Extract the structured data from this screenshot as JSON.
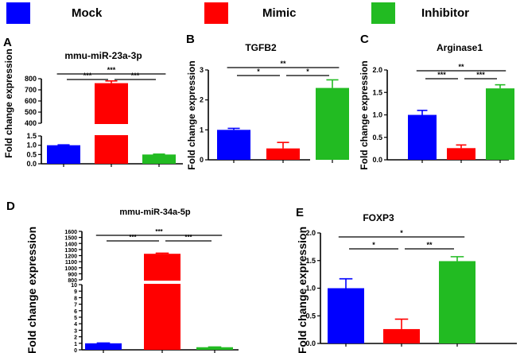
{
  "legend": [
    {
      "label": "Mock",
      "color": "#0000ff"
    },
    {
      "label": "Mimic",
      "color": "#ff0000"
    },
    {
      "label": "Inhibitor",
      "color": "#22bb22"
    }
  ],
  "chart_data": [
    {
      "type": "bar",
      "panel": "A",
      "title": "mmu-miR-23a-3p",
      "ylabel": "Fold change expression",
      "categories": [
        "Mock",
        "Mimic",
        "Inhibitor"
      ],
      "values": [
        1.0,
        760,
        0.5
      ],
      "errors": [
        0.02,
        20,
        0.02
      ],
      "axis_break": true,
      "lower_range": [
        0,
        1.5
      ],
      "upper_range": [
        400,
        800
      ],
      "lower_ticks": [
        "0.0",
        "0.5",
        "1.0",
        "1.5"
      ],
      "upper_ticks": [
        "400",
        "500",
        "600",
        "700",
        "800"
      ],
      "significance": [
        {
          "from": 0,
          "to": 2,
          "label": "***"
        },
        {
          "from": 0,
          "to": 1,
          "label": "***"
        },
        {
          "from": 1,
          "to": 2,
          "label": "***"
        }
      ]
    },
    {
      "type": "bar",
      "panel": "B",
      "title": "TGFB2",
      "ylabel": "Fold change expression",
      "categories": [
        "Mock",
        "Mimic",
        "Inhibitor"
      ],
      "values": [
        1.0,
        0.38,
        2.4
      ],
      "errors": [
        0.05,
        0.2,
        0.27
      ],
      "ylim": [
        0,
        3
      ],
      "ticks": [
        "0",
        "1",
        "2",
        "3"
      ],
      "significance": [
        {
          "from": 0,
          "to": 2,
          "label": "**"
        },
        {
          "from": 0,
          "to": 1,
          "label": "*"
        },
        {
          "from": 1,
          "to": 2,
          "label": "*"
        }
      ]
    },
    {
      "type": "bar",
      "panel": "C",
      "title": "Arginase1",
      "ylabel": "Fold change expression",
      "categories": [
        "Mock",
        "Mimic",
        "Inhibitor"
      ],
      "values": [
        1.0,
        0.26,
        1.59
      ],
      "errors": [
        0.1,
        0.07,
        0.08
      ],
      "ylim": [
        0,
        2
      ],
      "ticks": [
        "0.0",
        "0.5",
        "1.0",
        "1.5",
        "2.0"
      ],
      "significance": [
        {
          "from": 0,
          "to": 2,
          "label": "**"
        },
        {
          "from": 0,
          "to": 1,
          "label": "***"
        },
        {
          "from": 1,
          "to": 2,
          "label": "***"
        }
      ]
    },
    {
      "type": "bar",
      "panel": "D",
      "title": "mmu-miR-34a-5p",
      "ylabel": "Fold change expression",
      "categories": [
        "Mock",
        "Mimic",
        "Inhibitor"
      ],
      "values": [
        1.0,
        1230,
        0.4
      ],
      "errors": [
        0.05,
        10,
        0.03
      ],
      "axis_break": true,
      "lower_range": [
        0,
        10
      ],
      "upper_range": [
        800,
        1600
      ],
      "lower_ticks": [
        "0",
        "1",
        "2",
        "3",
        "4",
        "5",
        "6",
        "7",
        "8",
        "9",
        "10"
      ],
      "upper_ticks": [
        "800",
        "900",
        "1000",
        "1100",
        "1200",
        "1300",
        "1400",
        "1500",
        "1600"
      ],
      "significance": [
        {
          "from": 0,
          "to": 2,
          "label": "***"
        },
        {
          "from": 0,
          "to": 1,
          "label": "***"
        },
        {
          "from": 1,
          "to": 2,
          "label": "***"
        }
      ]
    },
    {
      "type": "bar",
      "panel": "E",
      "title": "FOXP3",
      "ylabel": "Fold change expression",
      "categories": [
        "Mock",
        "Mimic",
        "Inhibitor"
      ],
      "values": [
        1.0,
        0.26,
        1.49
      ],
      "errors": [
        0.17,
        0.18,
        0.08
      ],
      "ylim": [
        0,
        2
      ],
      "ticks": [
        "0.0",
        "0.5",
        "1.0",
        "1.5",
        "2.0"
      ],
      "significance": [
        {
          "from": 0,
          "to": 2,
          "label": "*"
        },
        {
          "from": 0,
          "to": 1,
          "label": "*"
        },
        {
          "from": 1,
          "to": 2,
          "label": "**"
        }
      ]
    }
  ]
}
